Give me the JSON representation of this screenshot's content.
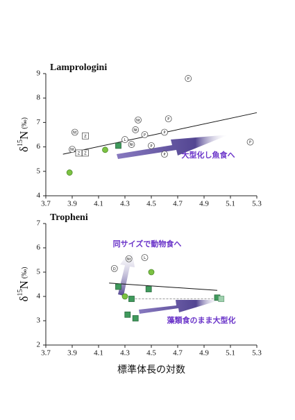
{
  "chart_data": [
    {
      "type": "scatter",
      "title": "Lamprologini",
      "ylabel": {
        "symbol": "δ",
        "mass": "15",
        "element": "N",
        "unit": "(‰)"
      },
      "xlim": [
        3.7,
        5.3
      ],
      "xticks": [
        3.7,
        3.9,
        4.1,
        4.3,
        4.5,
        4.7,
        4.9,
        5.1,
        5.3
      ],
      "ylim": [
        4,
        9
      ],
      "yticks": [
        4,
        5,
        6,
        7,
        8,
        9
      ],
      "series": [
        {
          "marker": "circle",
          "color": "#ffffff",
          "edge": "#555555",
          "x": [
            4.78,
            5.25,
            4.6,
            4.45,
            4.4,
            4.63,
            4.38,
            4.3,
            4.35,
            4.5,
            4.6,
            3.92,
            3.9
          ],
          "values": [
            8.8,
            6.2,
            6.6,
            6.5,
            7.1,
            7.15,
            6.7,
            6.3,
            6.1,
            6.05,
            5.7,
            6.6,
            5.9
          ],
          "labels": [
            "P",
            "P",
            "P",
            "P",
            "Nt",
            "P",
            "Nt",
            "L",
            "Nt",
            "P",
            "P",
            "Nt",
            "Nt"
          ]
        },
        {
          "marker": "square",
          "color": "#ffffff",
          "edge": "#555555",
          "x": [
            4.0,
            3.95,
            4.0
          ],
          "values": [
            6.45,
            5.75,
            5.75
          ],
          "labels": [
            "Z",
            "Z",
            "Z"
          ]
        },
        {
          "marker": "circle",
          "color": "#7cc242",
          "edge": "#4d8a2a",
          "x": [
            3.88,
            4.15
          ],
          "values": [
            4.95,
            5.88
          ]
        },
        {
          "marker": "square",
          "color": "#3f9a5c",
          "edge": "#2a6a3e",
          "x": [
            4.25
          ],
          "values": [
            6.05
          ]
        }
      ],
      "trend": {
        "x": [
          3.83,
          5.3
        ],
        "y": [
          5.7,
          7.4
        ]
      },
      "annotations": [
        "大型化し魚食へ"
      ]
    },
    {
      "type": "scatter",
      "title": "Tropheni",
      "ylabel": {
        "symbol": "δ",
        "mass": "15",
        "element": "N",
        "unit": "(‰)"
      },
      "xlabel": "標準体長の対数",
      "xlim": [
        3.7,
        5.3
      ],
      "xticks": [
        3.7,
        3.9,
        4.1,
        4.3,
        4.5,
        4.7,
        4.9,
        5.1,
        5.3
      ],
      "ylim": [
        2,
        7
      ],
      "yticks": [
        2,
        3,
        4,
        5,
        6,
        7
      ],
      "series": [
        {
          "marker": "circle",
          "color": "#ffffff",
          "edge": "#555555",
          "x": [
            4.22,
            4.33,
            4.45
          ],
          "values": [
            5.15,
            5.55,
            5.6
          ],
          "labels": [
            "D",
            "Nt",
            "L"
          ]
        },
        {
          "marker": "square",
          "color": "#3f9a5c",
          "edge": "#2a6a3e",
          "x": [
            4.25,
            4.48,
            4.35,
            4.32,
            4.38,
            5.0
          ],
          "values": [
            4.4,
            4.3,
            3.9,
            3.25,
            3.1,
            3.95
          ]
        },
        {
          "marker": "square",
          "color": "#9fd0ae",
          "edge": "#6aa27c",
          "x": [
            5.03
          ],
          "values": [
            3.9
          ]
        },
        {
          "marker": "circle",
          "color": "#7cc242",
          "edge": "#4d8a2a",
          "x": [
            4.3,
            4.5
          ],
          "values": [
            4.0,
            5.0
          ]
        }
      ],
      "trend": {
        "x": [
          4.18,
          5.0
        ],
        "y": [
          4.55,
          4.25
        ]
      },
      "dashed": {
        "x": [
          4.35,
          5.03
        ],
        "y": [
          3.9,
          3.9
        ]
      },
      "annotations": [
        "同サイズで動物食へ",
        "藻類食のまま大型化"
      ]
    }
  ]
}
